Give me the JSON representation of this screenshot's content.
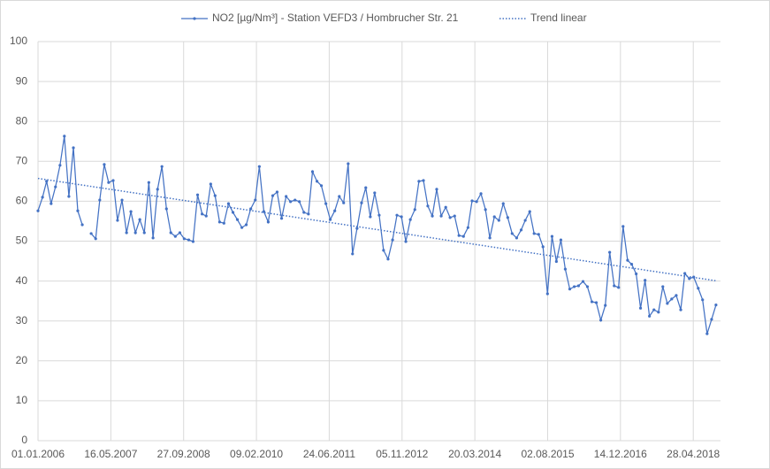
{
  "chart_data": {
    "type": "line",
    "x": [
      "01.01.2006",
      "01.02.2006",
      "01.03.2006",
      "01.04.2006",
      "01.05.2006",
      "01.06.2006",
      "01.07.2006",
      "01.08.2006",
      "01.09.2006",
      "01.10.2006",
      "01.11.2006",
      "01.12.2006",
      "01.01.2007",
      "01.02.2007",
      "01.03.2007",
      "01.04.2007",
      "01.05.2007",
      "01.06.2007",
      "01.07.2007",
      "01.08.2007",
      "01.09.2007",
      "01.10.2007",
      "01.11.2007",
      "01.12.2007",
      "01.01.2008",
      "01.02.2008",
      "01.03.2008",
      "01.04.2008",
      "01.05.2008",
      "01.06.2008",
      "01.07.2008",
      "01.08.2008",
      "01.09.2008",
      "01.10.2008",
      "01.11.2008",
      "01.12.2008",
      "01.01.2009",
      "01.02.2009",
      "01.03.2009",
      "01.04.2009",
      "01.05.2009",
      "01.06.2009",
      "01.07.2009",
      "01.08.2009",
      "01.09.2009",
      "01.10.2009",
      "01.11.2009",
      "01.12.2009",
      "01.01.2010",
      "01.02.2010",
      "01.03.2010",
      "01.04.2010",
      "01.05.2010",
      "01.06.2010",
      "01.07.2010",
      "01.08.2010",
      "01.09.2010",
      "01.10.2010",
      "01.11.2010",
      "01.12.2010",
      "01.01.2011",
      "01.02.2011",
      "01.03.2011",
      "01.04.2011",
      "01.05.2011",
      "01.06.2011",
      "01.07.2011",
      "01.08.2011",
      "01.09.2011",
      "01.10.2011",
      "01.11.2011",
      "01.12.2011",
      "01.01.2012",
      "01.02.2012",
      "01.03.2012",
      "01.04.2012",
      "01.05.2012",
      "01.06.2012",
      "01.07.2012",
      "01.08.2012",
      "01.09.2012",
      "01.10.2012",
      "01.11.2012",
      "01.12.2012",
      "01.01.2013",
      "01.02.2013",
      "01.03.2013",
      "01.04.2013",
      "01.05.2013",
      "01.06.2013",
      "01.07.2013",
      "01.08.2013",
      "01.09.2013",
      "01.10.2013",
      "01.11.2013",
      "01.12.2013",
      "01.01.2014",
      "01.02.2014",
      "01.03.2014",
      "01.04.2014",
      "01.05.2014",
      "01.06.2014",
      "01.07.2014",
      "01.08.2014",
      "01.09.2014",
      "01.10.2014",
      "01.11.2014",
      "01.12.2014",
      "01.01.2015",
      "01.02.2015",
      "01.03.2015",
      "01.04.2015",
      "01.05.2015",
      "01.06.2015",
      "01.07.2015",
      "01.08.2015",
      "01.09.2015",
      "01.10.2015",
      "01.11.2015",
      "01.12.2015",
      "01.01.2016",
      "01.02.2016",
      "01.03.2016",
      "01.04.2016",
      "01.05.2016",
      "01.06.2016",
      "01.07.2016",
      "01.08.2016",
      "01.09.2016",
      "01.10.2016",
      "01.11.2016",
      "01.12.2016",
      "01.01.2017",
      "01.02.2017",
      "01.03.2017",
      "01.04.2017",
      "01.05.2017",
      "01.06.2017",
      "01.07.2017",
      "01.08.2017",
      "01.09.2017",
      "01.10.2017",
      "01.11.2017",
      "01.12.2017",
      "01.01.2018",
      "01.02.2018",
      "01.03.2018",
      "01.04.2018",
      "01.05.2018",
      "01.06.2018",
      "01.07.2018",
      "01.08.2018",
      "01.09.2018",
      "01.10.2018"
    ],
    "series": [
      {
        "name": "NO2 [µg/Nm³] - Station VEFD3 / Hombrucher Str. 21",
        "color": "#4472c4",
        "values": [
          57.6,
          61,
          65,
          59.4,
          63.6,
          69,
          76.3,
          61.2,
          73.4,
          57.6,
          54.1,
          null,
          51.9,
          50.6,
          60.3,
          69.2,
          64.7,
          65.2,
          55.2,
          60.3,
          52.1,
          57.4,
          52.1,
          55.4,
          52.1,
          64.7,
          50.8,
          63,
          68.7,
          58.1,
          52.1,
          51.2,
          52.1,
          50.6,
          50.3,
          49.9,
          61.6,
          56.8,
          56.3,
          64.3,
          61.4,
          54.8,
          54.5,
          59.4,
          57.2,
          55.4,
          53.4,
          54.1,
          58.1,
          60.3,
          68.7,
          57.4,
          54.8,
          61.4,
          62.3,
          55.7,
          61.2,
          59.9,
          60.3,
          59.9,
          57.2,
          56.8,
          67.4,
          65,
          63.9,
          59.4,
          55.4,
          57.6,
          61.2,
          59.6,
          69.4,
          46.8,
          53.2,
          59.6,
          63.4,
          56.1,
          62.1,
          56.5,
          47.7,
          45.5,
          50.3,
          56.5,
          56.1,
          49.9,
          55.4,
          57.9,
          65,
          65.2,
          58.8,
          56.3,
          63,
          56.3,
          58.5,
          55.9,
          56.3,
          51.4,
          51.2,
          53.4,
          60.1,
          59.9,
          61.9,
          57.9,
          50.8,
          56.1,
          55.2,
          59.4,
          55.9,
          51.9,
          50.8,
          52.8,
          55.2,
          57.4,
          51.9,
          51.7,
          48.6,
          36.8,
          51.2,
          44.9,
          50.3,
          43.0,
          38.0,
          38.6,
          38.8,
          39.9,
          38.6,
          34.8,
          34.6,
          30.2,
          33.9,
          47.2,
          38.8,
          38.4,
          53.7,
          45.2,
          44.2,
          41.8,
          33.2,
          40.2,
          31.2,
          32.8,
          32.2,
          38.6,
          34.4,
          35.5,
          36.4,
          32.8,
          41.9,
          40.6,
          41.0,
          38.2,
          35.3,
          26.8,
          30.4,
          34.0
        ]
      }
    ],
    "trendline": {
      "name": "Trend linear",
      "color": "#4472c4"
    },
    "xlim": [
      "01.01.2006",
      "01.11.2018"
    ],
    "xticks": [
      "01.01.2006",
      "16.05.2007",
      "27.09.2008",
      "09.02.2010",
      "24.06.2011",
      "05.11.2012",
      "20.03.2014",
      "02.08.2015",
      "14.12.2016",
      "28.04.2018"
    ],
    "ylim": [
      0,
      100
    ],
    "yticks": [
      0,
      10,
      20,
      30,
      40,
      50,
      60,
      70,
      80,
      90,
      100
    ],
    "grid": true,
    "legend": "top"
  }
}
